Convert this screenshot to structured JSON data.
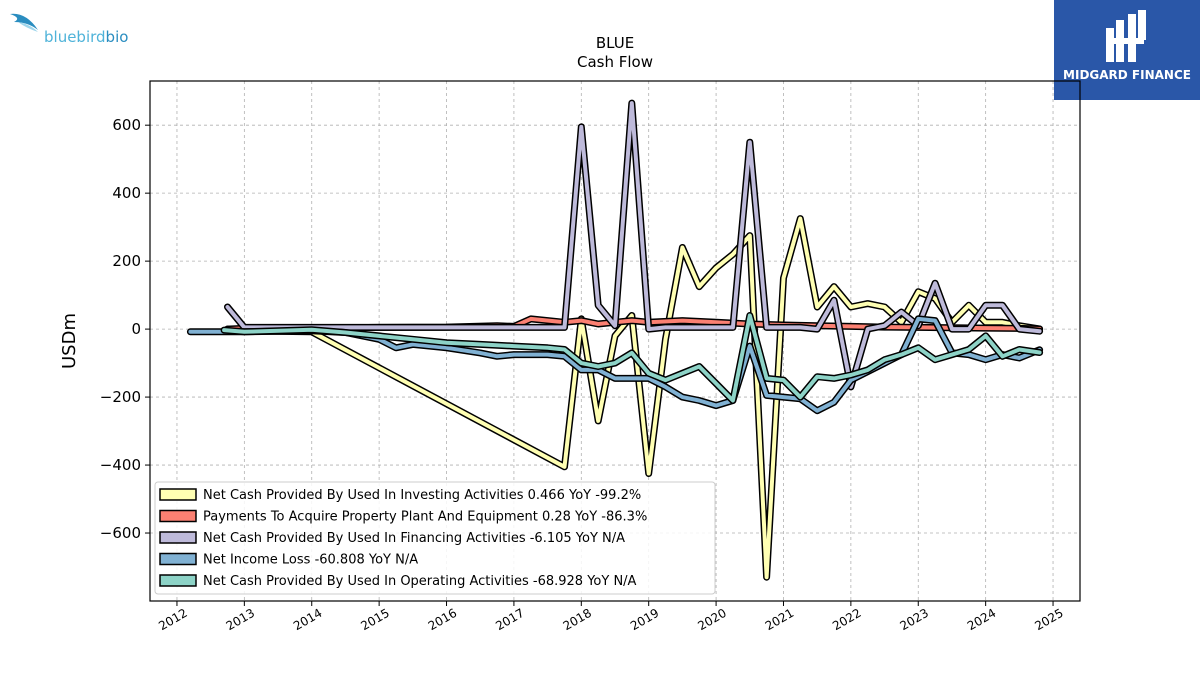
{
  "logos": {
    "left_wordmark_a": "bluebird",
    "left_wordmark_b": "bio",
    "right_brand": "MIDGARD FINANCE"
  },
  "colors": {
    "investing": "#ffffb3",
    "capex": "#fb8072",
    "financing": "#bebada",
    "net_income": "#80b1d3",
    "operating": "#8dd3c7",
    "brand_box": "#2a57a8"
  },
  "chart_data": {
    "type": "line",
    "title": "BLUE",
    "subtitle": "Cash Flow",
    "xlabel": "",
    "ylabel": "USDm",
    "xlim": [
      2011.6,
      2025.4
    ],
    "ylim": [
      -800,
      730
    ],
    "x_ticks": [
      2012,
      2013,
      2014,
      2015,
      2016,
      2017,
      2018,
      2019,
      2020,
      2021,
      2022,
      2023,
      2024,
      2025
    ],
    "y_ticks": [
      600,
      400,
      200,
      0,
      -200,
      -400,
      -600
    ],
    "y_tick_labels": [
      "600",
      "400",
      "200",
      "0",
      "−200",
      "−400",
      "−600"
    ],
    "grid": true,
    "legend_position": "lower-left",
    "series": [
      {
        "name": "Net Cash Provided By Used In Investing Activities  0.466 YoY -99.2%",
        "color": "#ffffb3",
        "points": [
          [
            2012.75,
            0
          ],
          [
            2013,
            -5
          ],
          [
            2014,
            -8
          ],
          [
            2017.75,
            -405
          ],
          [
            2018,
            30
          ],
          [
            2018.25,
            -270
          ],
          [
            2018.5,
            -20
          ],
          [
            2018.75,
            40
          ],
          [
            2019,
            -425
          ],
          [
            2019.25,
            -30
          ],
          [
            2019.5,
            240
          ],
          [
            2019.75,
            125
          ],
          [
            2020,
            180
          ],
          [
            2020.25,
            220
          ],
          [
            2020.5,
            275
          ],
          [
            2020.75,
            -730
          ],
          [
            2021,
            150
          ],
          [
            2021.25,
            325
          ],
          [
            2021.5,
            65
          ],
          [
            2021.75,
            125
          ],
          [
            2022,
            65
          ],
          [
            2022.25,
            75
          ],
          [
            2022.5,
            65
          ],
          [
            2022.75,
            20
          ],
          [
            2023,
            110
          ],
          [
            2023.25,
            90
          ],
          [
            2023.5,
            20
          ],
          [
            2023.75,
            70
          ],
          [
            2024,
            20
          ],
          [
            2024.25,
            20
          ],
          [
            2024.5,
            10
          ],
          [
            2024.8,
            0.5
          ]
        ]
      },
      {
        "name": "Payments To Acquire Property Plant And Equipment  0.28 YoY -86.3%",
        "color": "#fb8072",
        "points": [
          [
            2012.75,
            0
          ],
          [
            2013,
            2
          ],
          [
            2014,
            3
          ],
          [
            2015,
            5
          ],
          [
            2016,
            6
          ],
          [
            2016.75,
            10
          ],
          [
            2017,
            8
          ],
          [
            2017.25,
            30
          ],
          [
            2017.75,
            20
          ],
          [
            2018,
            25
          ],
          [
            2018.25,
            15
          ],
          [
            2018.5,
            20
          ],
          [
            2018.75,
            25
          ],
          [
            2019,
            20
          ],
          [
            2019.5,
            25
          ],
          [
            2020,
            20
          ],
          [
            2020.5,
            15
          ],
          [
            2021,
            12
          ],
          [
            2021.5,
            10
          ],
          [
            2022,
            8
          ],
          [
            2022.5,
            6
          ],
          [
            2023,
            5
          ],
          [
            2023.5,
            4
          ],
          [
            2024,
            3
          ],
          [
            2024.5,
            2
          ],
          [
            2024.8,
            0.3
          ]
        ]
      },
      {
        "name": "Net Cash Provided By Used In Financing Activities  -6.105 YoY N/A",
        "color": "#bebada",
        "points": [
          [
            2012.75,
            65
          ],
          [
            2013,
            5
          ],
          [
            2014,
            5
          ],
          [
            2015,
            5
          ],
          [
            2016,
            5
          ],
          [
            2017,
            5
          ],
          [
            2017.75,
            5
          ],
          [
            2018,
            595
          ],
          [
            2018.25,
            70
          ],
          [
            2018.5,
            10
          ],
          [
            2018.75,
            665
          ],
          [
            2019,
            0
          ],
          [
            2019.25,
            5
          ],
          [
            2019.5,
            5
          ],
          [
            2020,
            5
          ],
          [
            2020.25,
            5
          ],
          [
            2020.5,
            550
          ],
          [
            2020.75,
            5
          ],
          [
            2021,
            5
          ],
          [
            2021.25,
            5
          ],
          [
            2021.5,
            0
          ],
          [
            2021.75,
            85
          ],
          [
            2022,
            -170
          ],
          [
            2022.25,
            0
          ],
          [
            2022.5,
            10
          ],
          [
            2022.75,
            50
          ],
          [
            2023,
            10
          ],
          [
            2023.25,
            135
          ],
          [
            2023.5,
            0
          ],
          [
            2023.75,
            0
          ],
          [
            2024,
            70
          ],
          [
            2024.25,
            70
          ],
          [
            2024.5,
            0
          ],
          [
            2024.8,
            -6.1
          ]
        ]
      },
      {
        "name": "Net Income Loss  -60.808 YoY N/A",
        "color": "#80b1d3",
        "points": [
          [
            2012.2,
            -8
          ],
          [
            2013,
            -8
          ],
          [
            2014,
            -5
          ],
          [
            2014.5,
            -10
          ],
          [
            2015,
            -30
          ],
          [
            2015.25,
            -55
          ],
          [
            2015.5,
            -45
          ],
          [
            2016,
            -55
          ],
          [
            2016.5,
            -70
          ],
          [
            2016.75,
            -80
          ],
          [
            2017,
            -75
          ],
          [
            2017.5,
            -75
          ],
          [
            2017.75,
            -80
          ],
          [
            2018,
            -120
          ],
          [
            2018.25,
            -120
          ],
          [
            2018.5,
            -145
          ],
          [
            2018.75,
            -145
          ],
          [
            2019,
            -145
          ],
          [
            2019.25,
            -170
          ],
          [
            2019.5,
            -200
          ],
          [
            2019.75,
            -210
          ],
          [
            2020,
            -225
          ],
          [
            2020.25,
            -210
          ],
          [
            2020.5,
            -50
          ],
          [
            2020.75,
            -195
          ],
          [
            2021,
            -200
          ],
          [
            2021.25,
            -205
          ],
          [
            2021.5,
            -240
          ],
          [
            2021.75,
            -215
          ],
          [
            2022,
            -150
          ],
          [
            2022.5,
            -100
          ],
          [
            2022.75,
            -75
          ],
          [
            2023,
            30
          ],
          [
            2023.25,
            25
          ],
          [
            2023.5,
            -70
          ],
          [
            2023.75,
            -75
          ],
          [
            2024,
            -90
          ],
          [
            2024.25,
            -75
          ],
          [
            2024.5,
            -85
          ],
          [
            2024.8,
            -60.8
          ]
        ]
      },
      {
        "name": "Net Cash Provided By Used In Operating Activities  -68.928 YoY N/A",
        "color": "#8dd3c7",
        "points": [
          [
            2012.7,
            -3
          ],
          [
            2013,
            -8
          ],
          [
            2014,
            -2
          ],
          [
            2014.5,
            -10
          ],
          [
            2015,
            -20
          ],
          [
            2015.5,
            -30
          ],
          [
            2016,
            -40
          ],
          [
            2016.5,
            -45
          ],
          [
            2017,
            -50
          ],
          [
            2017.5,
            -55
          ],
          [
            2017.75,
            -60
          ],
          [
            2018,
            -100
          ],
          [
            2018.25,
            -110
          ],
          [
            2018.5,
            -100
          ],
          [
            2018.75,
            -70
          ],
          [
            2019,
            -130
          ],
          [
            2019.25,
            -150
          ],
          [
            2019.5,
            -130
          ],
          [
            2019.75,
            -110
          ],
          [
            2020,
            -160
          ],
          [
            2020.25,
            -210
          ],
          [
            2020.5,
            40
          ],
          [
            2020.75,
            -145
          ],
          [
            2021,
            -150
          ],
          [
            2021.25,
            -200
          ],
          [
            2021.5,
            -140
          ],
          [
            2021.75,
            -145
          ],
          [
            2022,
            -135
          ],
          [
            2022.25,
            -120
          ],
          [
            2022.5,
            -90
          ],
          [
            2022.75,
            -75
          ],
          [
            2023,
            -55
          ],
          [
            2023.25,
            -90
          ],
          [
            2023.5,
            -75
          ],
          [
            2023.75,
            -60
          ],
          [
            2024,
            -20
          ],
          [
            2024.25,
            -80
          ],
          [
            2024.5,
            -60
          ],
          [
            2024.8,
            -68.9
          ]
        ]
      }
    ]
  }
}
